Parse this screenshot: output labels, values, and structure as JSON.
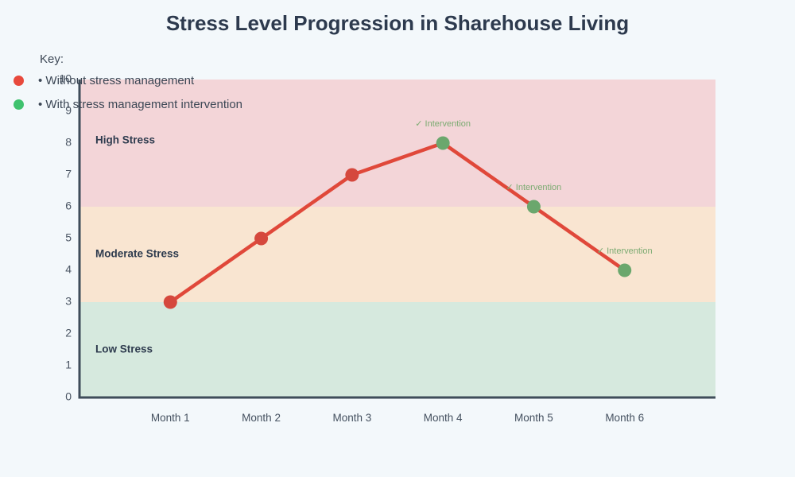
{
  "title": "Stress Level Progression in Sharehouse Living",
  "key": {
    "heading": "Key:",
    "items": [
      {
        "name": "without-stress-management",
        "dot_color": "#e8493c",
        "label": "• Without stress management"
      },
      {
        "name": "with-stress-management-intervention",
        "dot_color": "#3fc26e",
        "label": "• With stress management intervention"
      }
    ]
  },
  "chart_data": {
    "type": "line",
    "title": "Stress Level Progression in Sharehouse Living",
    "categories": [
      "Month 1",
      "Month 2",
      "Month 3",
      "Month 4",
      "Month 5",
      "Month 6"
    ],
    "series": [
      {
        "name": "Stress level",
        "values": [
          3,
          5,
          7,
          8,
          6,
          4
        ],
        "point_status": [
          "without",
          "without",
          "without",
          "with",
          "with",
          "with"
        ]
      }
    ],
    "ylim": [
      0,
      10
    ],
    "y_ticks": [
      0,
      1,
      2,
      3,
      4,
      5,
      6,
      7,
      8,
      9,
      10
    ],
    "grid": false,
    "legend_position": "top-left",
    "bands": [
      {
        "label": "High Stress",
        "from": 6,
        "to": 10,
        "color": "#f3d5d8"
      },
      {
        "label": "Moderate Stress",
        "from": 3,
        "to": 6,
        "color": "#f9e5d1"
      },
      {
        "label": "Low Stress",
        "from": 0,
        "to": 3,
        "color": "#d6e9de"
      }
    ],
    "annotations": [
      {
        "category_index": 3,
        "text": "✓ Intervention"
      },
      {
        "category_index": 4,
        "text": "✓ Intervention"
      },
      {
        "category_index": 5,
        "text": "✓ Intervention"
      }
    ],
    "colors": {
      "line": "#e0483a",
      "marker_without": "#d5483d",
      "marker_with": "#6ba76d",
      "annotation": "#7cab72",
      "axis": "#3f4d5a"
    }
  }
}
